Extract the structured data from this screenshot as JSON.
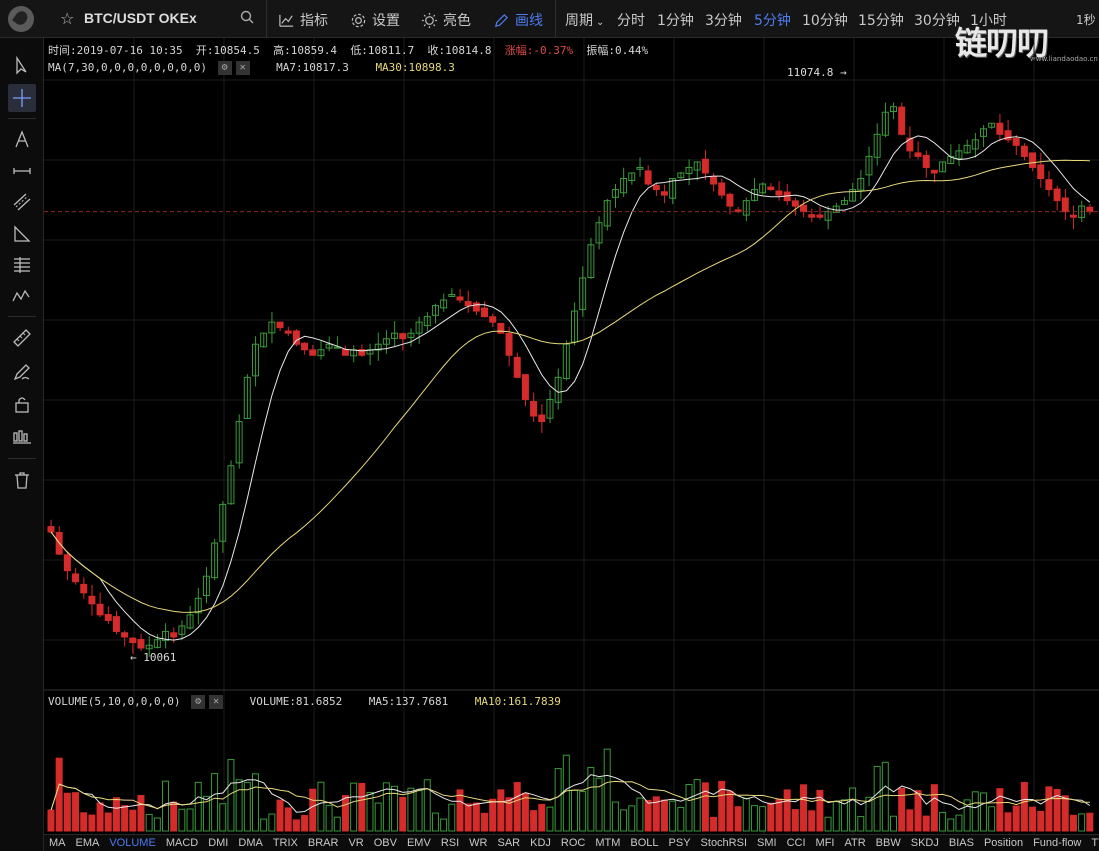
{
  "header": {
    "symbol": "BTC/USDT OKEx",
    "tools": [
      {
        "label": "指标",
        "icon": "indicator-icon"
      },
      {
        "label": "设置",
        "icon": "gear-icon"
      },
      {
        "label": "亮色",
        "icon": "sun-icon"
      },
      {
        "label": "画线",
        "icon": "pencil-icon",
        "active": true
      }
    ],
    "period_label": "周期",
    "periods": [
      "分时",
      "1分钟",
      "3分钟",
      "5分钟",
      "10分钟",
      "15分钟",
      "30分钟",
      "1小时"
    ],
    "active_period": "5分钟",
    "right_label": "1秒",
    "watermark": "链叨叨",
    "watermark_url": "www.liandaodao.cn"
  },
  "candle_info": {
    "time": "时间:2019-07-16 10:35",
    "open": "开:10854.5",
    "high": "高:10859.4",
    "low": "低:10811.7",
    "close": "收:10814.8",
    "change": "涨幅:-0.37%",
    "amplitude": "振幅:0.44%"
  },
  "ma_info": {
    "label": "MA(7,30,0,0,0,0,0,0,0,0)",
    "ma7": "MA7:10817.3",
    "ma30": "MA30:10898.3"
  },
  "volume_info": {
    "label": "VOLUME(5,10,0,0,0,0)",
    "volume": "VOLUME:81.6852",
    "ma5": "MA5:137.7681",
    "ma10": "MA10:161.7839"
  },
  "price_markers": {
    "high": "11074.8",
    "low": "10061"
  },
  "indicators": [
    "MA",
    "EMA",
    "VOLUME",
    "MACD",
    "DMI",
    "DMA",
    "TRIX",
    "BRAR",
    "VR",
    "OBV",
    "EMV",
    "RSI",
    "WR",
    "SAR",
    "KDJ",
    "ROC",
    "MTM",
    "BOLL",
    "PSY",
    "StochRSI",
    "SMI",
    "CCI",
    "MFI",
    "ATR",
    "BBW",
    "SKDJ",
    "BIAS",
    "Position",
    "Fund-flow",
    "TTSI"
  ],
  "active_indicator": "VOLUME",
  "colors": {
    "up": "#3a9a3a",
    "down": "#d52b2b",
    "ma7": "#e8e8e8",
    "ma30": "#e8d87a",
    "accent": "#4d7cf0",
    "background": "#000000"
  },
  "chart_data": {
    "type": "candlestick",
    "price_range": [
      10061,
      11074.8
    ],
    "closes": [
      10280,
      10240,
      10210,
      10190,
      10170,
      10150,
      10130,
      10120,
      10100,
      10090,
      10080,
      10070,
      10075,
      10085,
      10100,
      10090,
      10110,
      10130,
      10160,
      10200,
      10260,
      10330,
      10400,
      10480,
      10560,
      10620,
      10640,
      10660,
      10650,
      10640,
      10620,
      10610,
      10600,
      10610,
      10620,
      10615,
      10600,
      10610,
      10600,
      10610,
      10620,
      10630,
      10640,
      10630,
      10640,
      10660,
      10670,
      10690,
      10700,
      10710,
      10700,
      10690,
      10680,
      10670,
      10660,
      10640,
      10600,
      10560,
      10520,
      10490,
      10480,
      10520,
      10560,
      10620,
      10680,
      10740,
      10800,
      10840,
      10880,
      10900,
      10920,
      10930,
      10940,
      10910,
      10900,
      10890,
      10920,
      10930,
      10940,
      10950,
      10930,
      10910,
      10890,
      10870,
      10860,
      10880,
      10900,
      10910,
      10900,
      10890,
      10880,
      10870,
      10860,
      10850,
      10850,
      10860,
      10870,
      10880,
      10900,
      10920,
      10960,
      11000,
      11040,
      11050,
      11000,
      10970,
      10960,
      10940,
      10930,
      10950,
      10960,
      10970,
      10980,
      10990,
      11010,
      11020,
      11000,
      10990,
      10980,
      10960,
      10940,
      10920,
      10900,
      10880,
      10860,
      10850,
      10870,
      10860
    ]
  }
}
